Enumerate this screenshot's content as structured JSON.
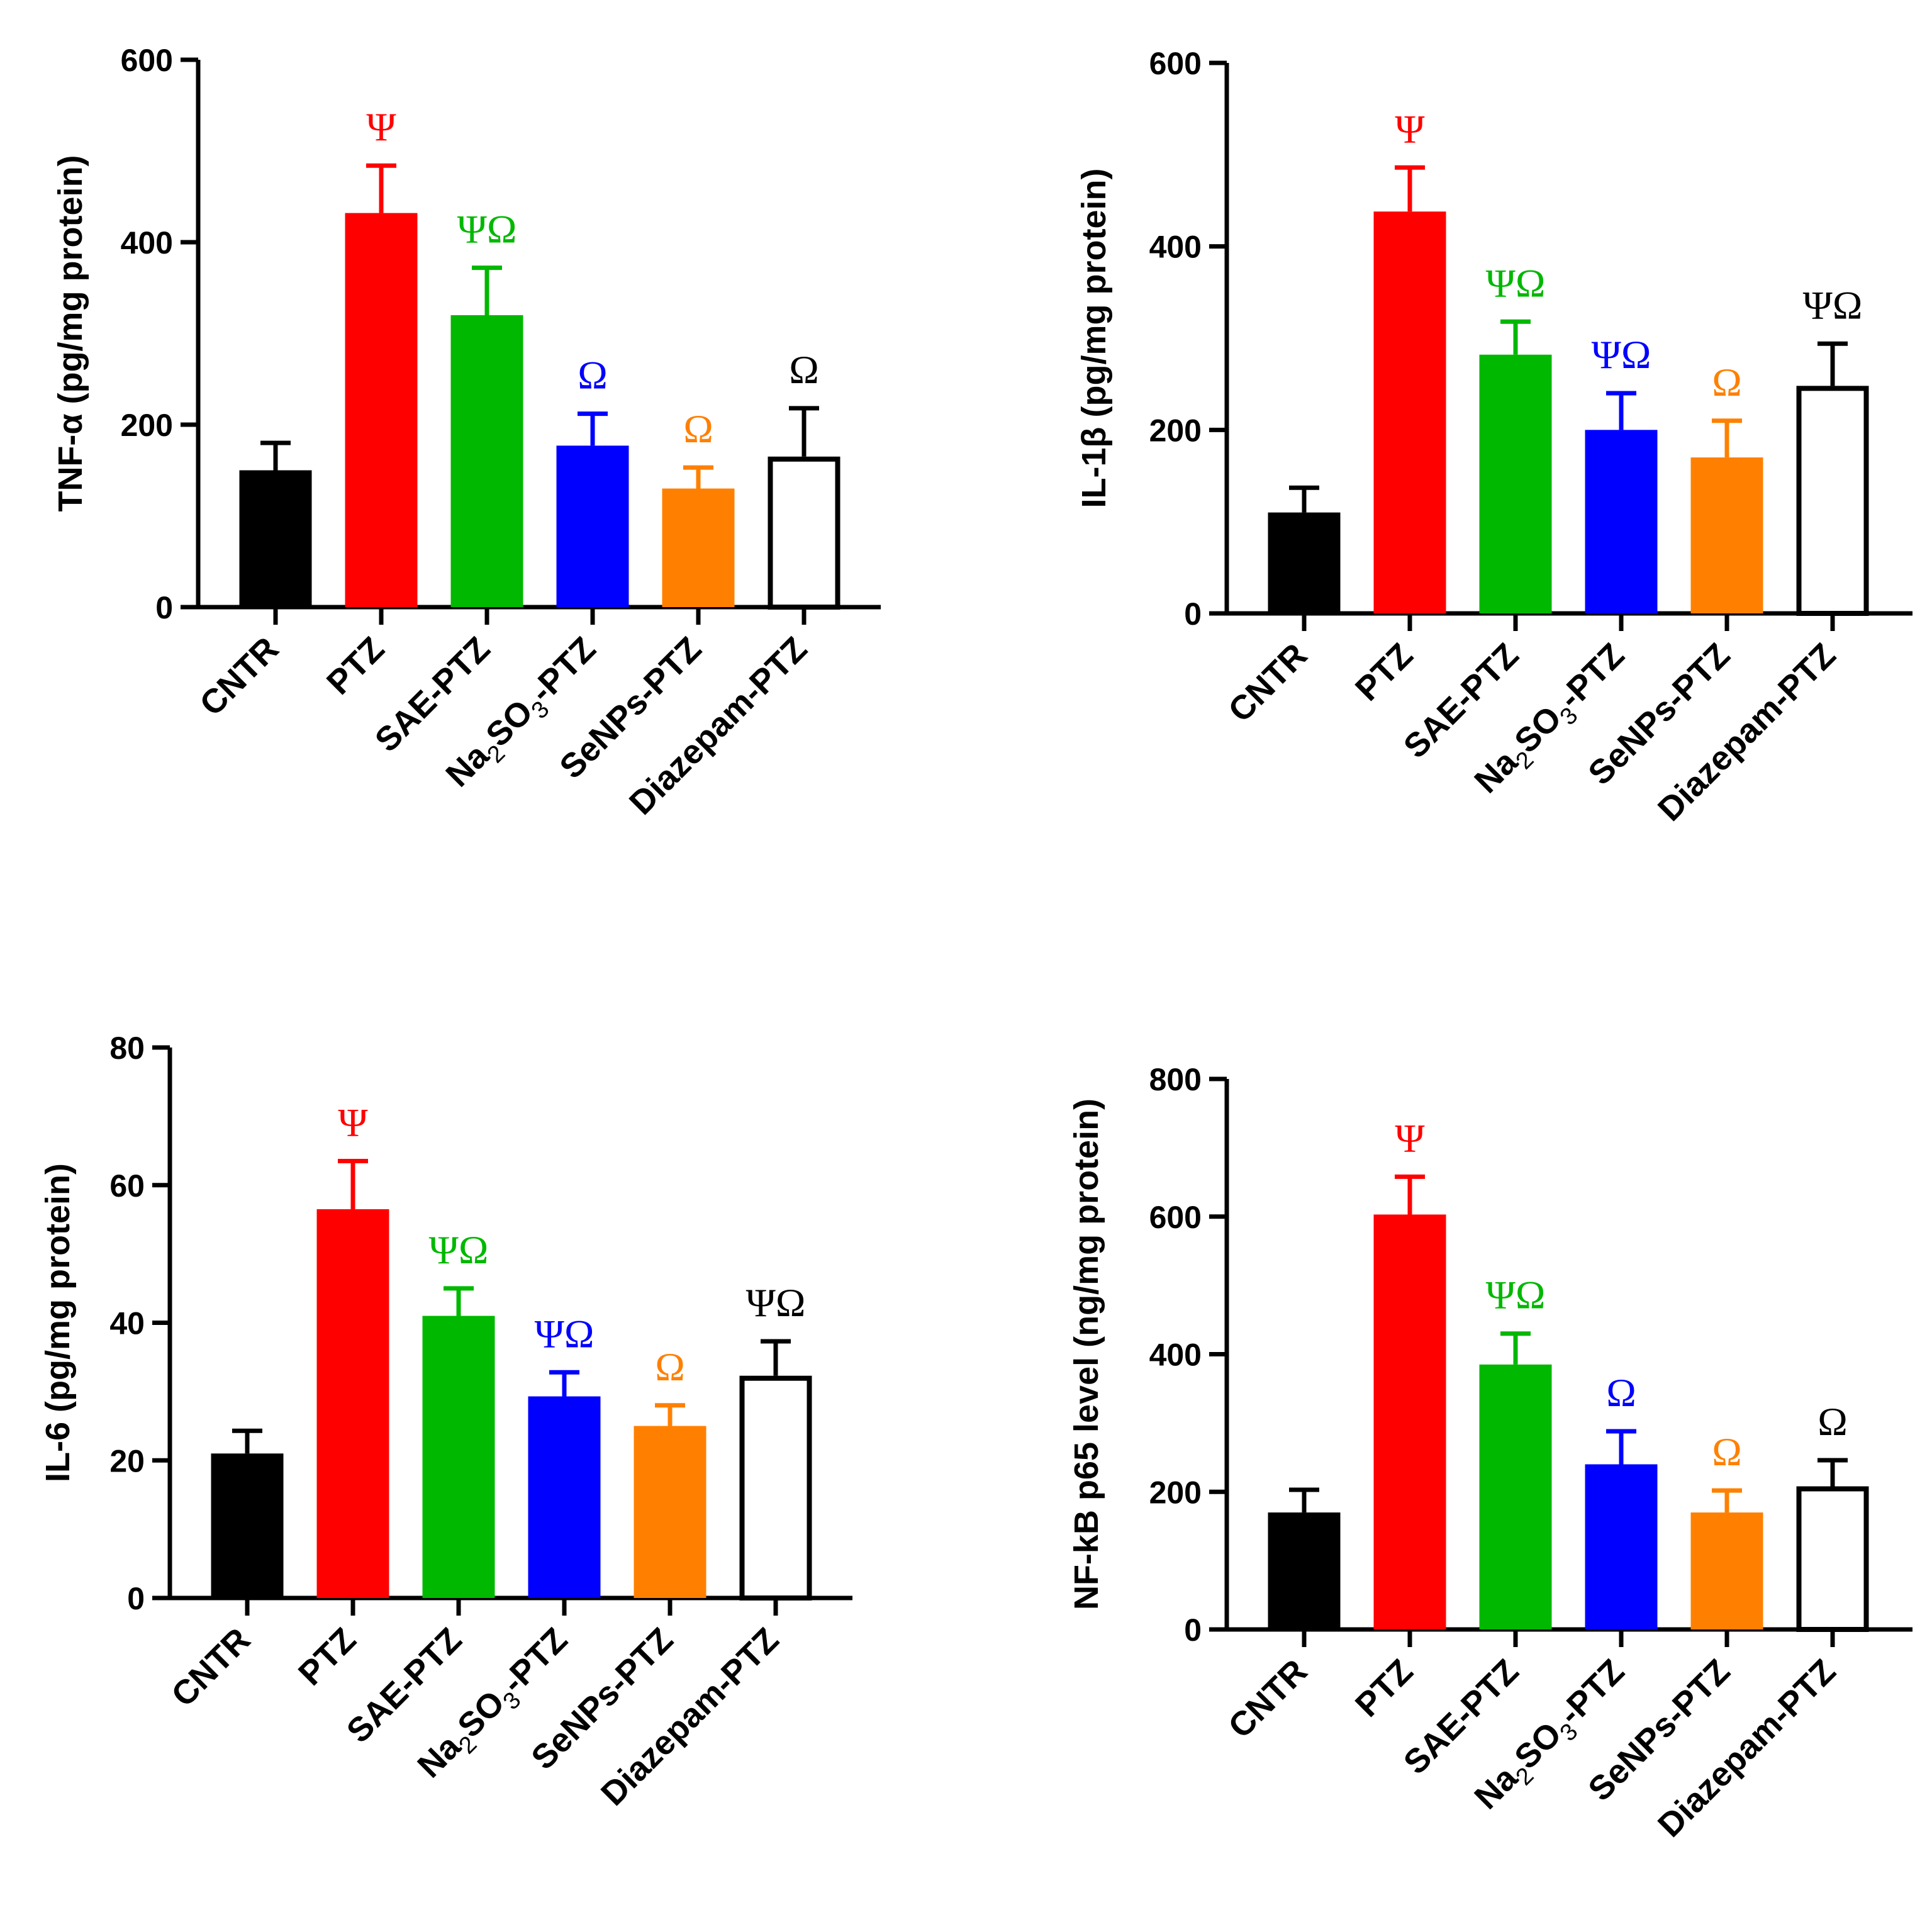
{
  "colors": {
    "axis": "#000000",
    "groups": [
      "#000000",
      "#ff0000",
      "#00b800",
      "#0000ff",
      "#ff8000",
      "#ffffff"
    ]
  },
  "chart_data": [
    {
      "type": "bar",
      "ylabel": "TNF-α (pg/mg protein)",
      "ylim": [
        0,
        600
      ],
      "yticks": [
        "0",
        "200",
        "400",
        "600"
      ],
      "categories": [
        {
          "main": "CNTR"
        },
        {
          "main": "PTZ"
        },
        {
          "main": "SAE-PTZ"
        },
        {
          "main": "Na",
          "sub1": "2",
          "mid": "SO",
          "sub2": "3",
          "tail": "-PTZ"
        },
        {
          "main": "SeNPs-PTZ"
        },
        {
          "main": "Diazepam-PTZ"
        }
      ],
      "values": [
        150,
        432,
        320,
        177,
        130,
        165
      ],
      "errors": [
        30,
        52,
        52,
        35,
        23,
        53
      ],
      "significance": [
        "",
        "Ψ",
        "ΨΩ",
        "Ω",
        "Ω",
        "Ω"
      ]
    },
    {
      "type": "bar",
      "ylabel": "IL-1β (pg/mg protein)",
      "ylim": [
        0,
        600
      ],
      "yticks": [
        "0",
        "200",
        "400",
        "600"
      ],
      "categories": [
        {
          "main": "CNTR"
        },
        {
          "main": "PTZ"
        },
        {
          "main": "SAE-PTZ"
        },
        {
          "main": "Na",
          "sub1": "2",
          "mid": "SO",
          "sub2": "3",
          "tail": "-PTZ"
        },
        {
          "main": "SeNPs-PTZ"
        },
        {
          "main": "Diazepam-PTZ"
        }
      ],
      "values": [
        110,
        438,
        282,
        200,
        170,
        248
      ],
      "errors": [
        27,
        48,
        36,
        40,
        40,
        46
      ],
      "significance": [
        "",
        "Ψ",
        "ΨΩ",
        "ΨΩ",
        "Ω",
        "ΨΩ"
      ]
    },
    {
      "type": "bar",
      "ylabel": "IL-6 (pg/mg protein)",
      "ylim": [
        0,
        80
      ],
      "yticks": [
        "0",
        "20",
        "40",
        "60",
        "80"
      ],
      "categories": [
        {
          "main": "CNTR"
        },
        {
          "main": "PTZ"
        },
        {
          "main": "SAE-PTZ"
        },
        {
          "main": "Na",
          "sub1": "2",
          "mid": "SO",
          "sub2": "3",
          "tail": "-PTZ"
        },
        {
          "main": "SeNPs-PTZ"
        },
        {
          "main": "Diazepam-PTZ"
        }
      ],
      "values": [
        21,
        56.5,
        41,
        29.3,
        25,
        32.3
      ],
      "errors": [
        3.3,
        7,
        4,
        3.5,
        3,
        5
      ],
      "significance": [
        "",
        "Ψ",
        "ΨΩ",
        "ΨΩ",
        "Ω",
        "ΨΩ"
      ]
    },
    {
      "type": "bar",
      "ylabel": "NF-kB p65 level (ng/mg protein)",
      "ylim": [
        0,
        800
      ],
      "yticks": [
        "0",
        "200",
        "400",
        "600",
        "800"
      ],
      "categories": [
        {
          "main": "CNTR"
        },
        {
          "main": "PTZ"
        },
        {
          "main": "SAE-PTZ"
        },
        {
          "main": "Na",
          "sub1": "2",
          "mid": "SO",
          "sub2": "3",
          "tail": "-PTZ"
        },
        {
          "main": "SeNPs-PTZ"
        },
        {
          "main": "Diazepam-PTZ"
        }
      ],
      "values": [
        170,
        603,
        385,
        240,
        170,
        208
      ],
      "errors": [
        33,
        55,
        45,
        48,
        32,
        38
      ],
      "significance": [
        "",
        "Ψ",
        "ΨΩ",
        "Ω",
        "Ω",
        "Ω"
      ]
    }
  ]
}
